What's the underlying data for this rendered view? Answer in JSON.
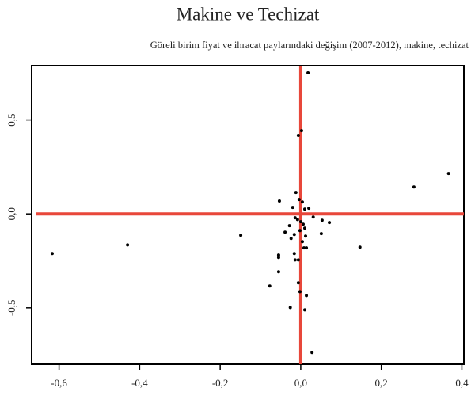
{
  "chart_data": {
    "type": "scatter",
    "title": "Makine ve Techizat",
    "subtitle": "Göreli birim fiyat ve ihracat paylarındaki değişim (2007-2012), makine, techizat",
    "xlim": [
      -0.668,
      0.405
    ],
    "ylim": [
      -0.8,
      0.789
    ],
    "xticks": [
      {
        "value": -0.6,
        "label": "-0,6"
      },
      {
        "value": -0.4,
        "label": "-0,4"
      },
      {
        "value": -0.2,
        "label": "-0,2"
      },
      {
        "value": 0,
        "label": "0,0"
      },
      {
        "value": 0.2,
        "label": "0,2"
      },
      {
        "value": 0.4,
        "label": "0,4"
      }
    ],
    "yticks": [
      {
        "value": -0.5,
        "label": "-0,5"
      },
      {
        "value": 0,
        "label": "0,0"
      },
      {
        "value": 0.5,
        "label": "0,5"
      }
    ],
    "hlines": [
      0
    ],
    "vlines": [
      0
    ],
    "refline_color": "#e8473a",
    "color": "#000000",
    "x": [
      0.018,
      0.002,
      -0.006,
      0.367,
      0.281,
      -0.617,
      -0.43,
      -0.149,
      0.147,
      0.071,
      0.053,
      0.051,
      0.031,
      -0.053,
      -0.012,
      -0.004,
      0.004,
      -0.02,
      0.01,
      0.02,
      -0.014,
      -0.008,
      0,
      0.006,
      0.01,
      -0.002,
      -0.016,
      -0.039,
      -0.028,
      -0.024,
      0.012,
      0.004,
      0.014,
      0.008,
      -0.016,
      -0.055,
      -0.055,
      -0.014,
      -0.006,
      -0.055,
      -0.077,
      -0.006,
      -0.002,
      0.014,
      -0.026,
      0.01,
      0.028
    ],
    "y": [
      0.751,
      0.443,
      0.418,
      0.215,
      0.143,
      -0.211,
      -0.165,
      -0.114,
      -0.177,
      -0.046,
      -0.034,
      -0.105,
      -0.017,
      0.068,
      0.114,
      0.076,
      0.063,
      0.034,
      0.025,
      0.03,
      -0.021,
      -0.03,
      -0.042,
      -0.055,
      -0.076,
      -0.089,
      -0.11,
      -0.097,
      -0.063,
      -0.131,
      -0.118,
      -0.148,
      -0.181,
      -0.181,
      -0.211,
      -0.219,
      -0.232,
      -0.245,
      -0.245,
      -0.308,
      -0.384,
      -0.367,
      -0.414,
      -0.435,
      -0.498,
      -0.511,
      -0.738
    ]
  }
}
